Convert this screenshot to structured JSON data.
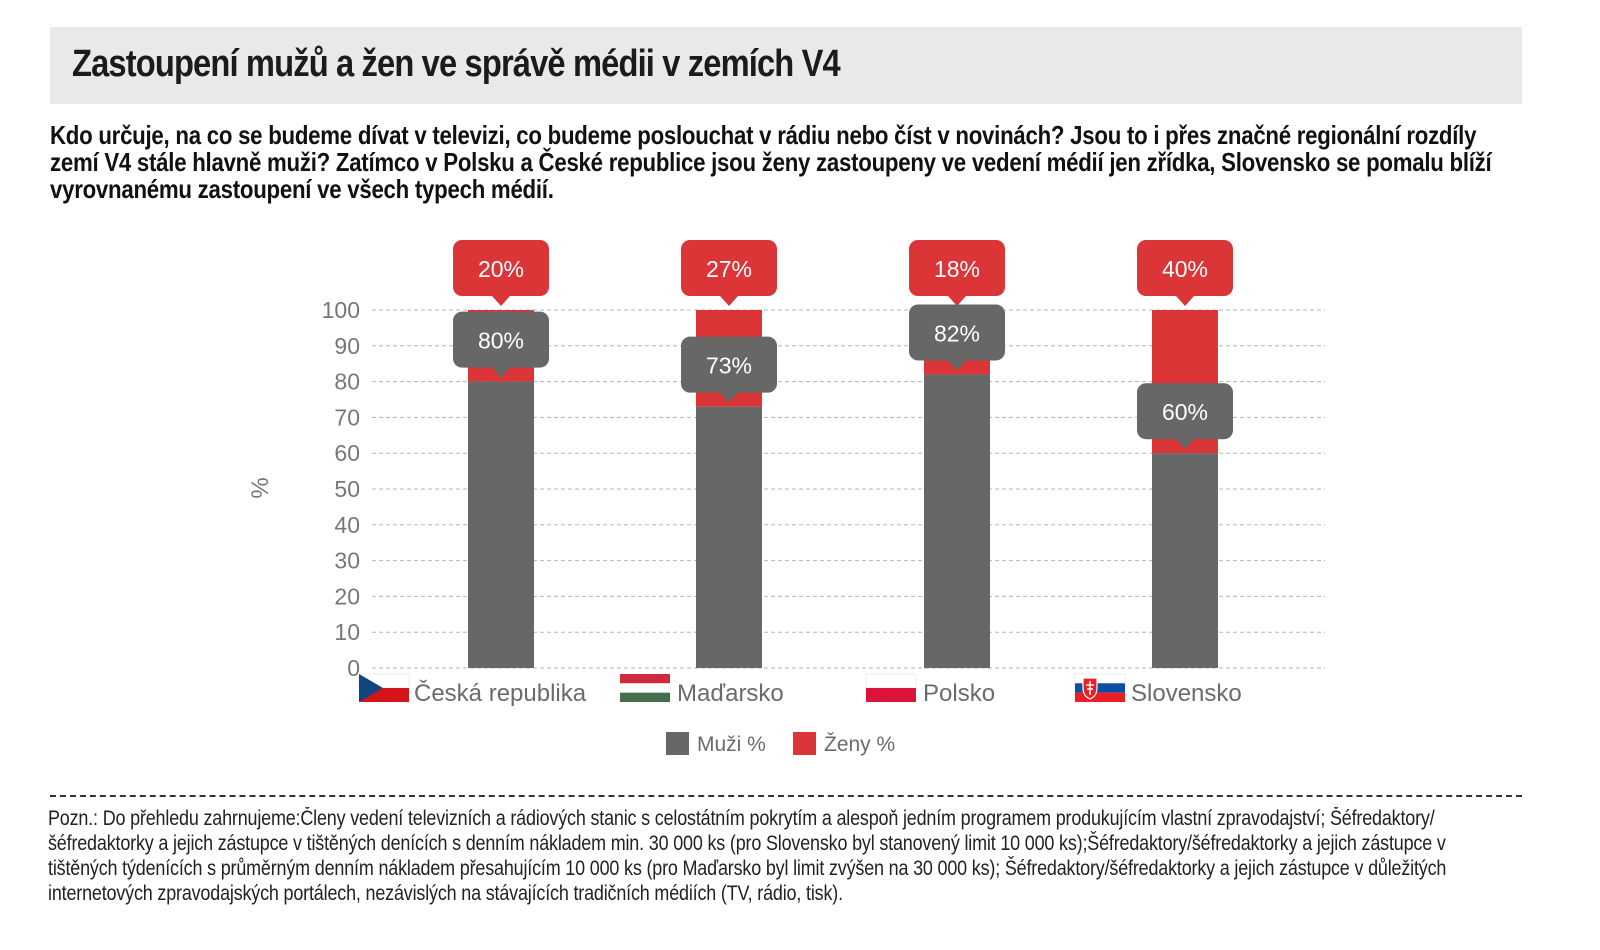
{
  "header": {
    "title": "Zastoupení mužů a žen ve správě médii v zemích V4",
    "subtitle": "Kdo určuje, na co se budeme dívat v televizi, co budeme poslouchat v rádiu nebo číst v novinách? Jsou to i přes značné regionální rozdíly zemí V4 stále hlavně muži? Zatímco v Polsku a České republice jsou ženy zastoupeny ve vedení médií jen zřídka, Slovensko se pomalu blíží vyrovnanému zastoupení ve všech typech médií."
  },
  "chart_data": {
    "type": "bar",
    "stacked": true,
    "categories": [
      "Česká republika",
      "Maďarsko",
      "Polsko",
      "Slovensko"
    ],
    "category_flags": [
      "flag-czech-republic-icon",
      "flag-hungary-icon",
      "flag-poland-icon",
      "flag-slovakia-icon"
    ],
    "series": [
      {
        "name": "Muži %",
        "values": [
          80,
          73,
          82,
          60
        ],
        "color": "#676767",
        "labels": [
          "80%",
          "73%",
          "82%",
          "60%"
        ]
      },
      {
        "name": "Ženy %",
        "values": [
          20,
          27,
          18,
          40
        ],
        "color": "#db3537",
        "labels": [
          "20%",
          "27%",
          "18%",
          "40%"
        ]
      }
    ],
    "ylabel": "%",
    "ylim": [
      0,
      100
    ],
    "yticks": [
      0,
      10,
      20,
      30,
      40,
      50,
      60,
      70,
      80,
      90,
      100
    ],
    "grid": true,
    "legend_position": "bottom"
  },
  "footer": {
    "note": "Pozn.: Do přehledu zahrnujeme:Členy vedení televizních a rádiových stanic s celostátním pokrytím a alespoň jedním programem produkujícím vlastní zpravodajství; Šéfredaktory/šéfredaktorky a jejich zástupce v tištěných denících s denním nákladem min. 30 000 ks (pro Slovensko byl stanovený limit 10 000 ks);Šéfredaktory/šéfredaktorky a jejich zástupce v tištěných týdenících s průměrným denním nákladem přesahujícím 10 000 ks (pro Maďarsko byl limit zvýšen na 30 000 ks); Šéfredaktory/šéfredaktorky a jejich zástupce v důležitých internetových zpravodajských portálech, nezávislých na stávajících tradičních médiích (TV, rádio, tisk)."
  }
}
